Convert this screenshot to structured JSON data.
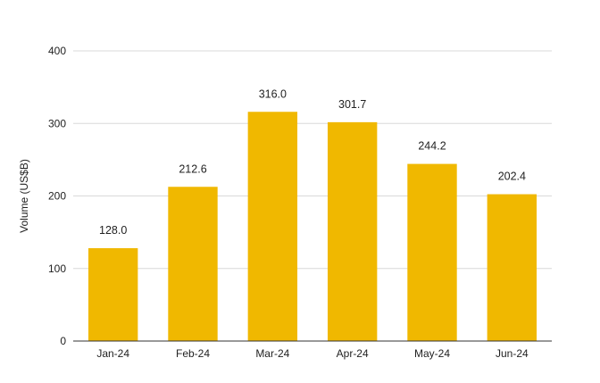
{
  "chart_data": {
    "type": "bar",
    "title": "",
    "xlabel": "",
    "ylabel": "Volume (US$B)",
    "categories": [
      "Jan-24",
      "Feb-24",
      "Mar-24",
      "Apr-24",
      "May-24",
      "Jun-24"
    ],
    "values": [
      128.0,
      212.6,
      316.0,
      301.7,
      244.2,
      202.4
    ],
    "value_labels": [
      "128.0",
      "212.6",
      "316.0",
      "301.7",
      "244.2",
      "202.4"
    ],
    "ylim": [
      0,
      400
    ],
    "yticks": [
      0,
      100,
      200,
      300,
      400
    ],
    "grid": true,
    "legend": "none",
    "bar_color": "#F0B800"
  }
}
